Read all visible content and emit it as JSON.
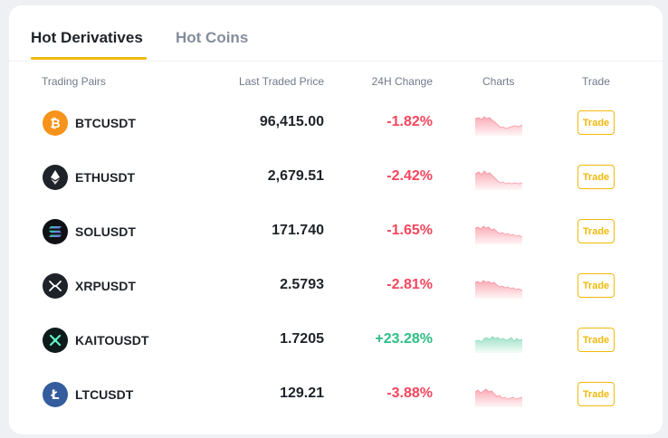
{
  "tabs": [
    {
      "label": "Hot Derivatives",
      "active": true
    },
    {
      "label": "Hot Coins",
      "active": false
    }
  ],
  "columns": {
    "pair": "Trading Pairs",
    "price": "Last Traded Price",
    "change": "24H Change",
    "charts": "Charts",
    "trade": "Trade"
  },
  "colors": {
    "accent": "#f0b90b",
    "negative": "#f6465d",
    "positive": "#2ebd85",
    "text": "#1e2329",
    "muted": "#707a8a"
  },
  "rows": [
    {
      "pair": "BTCUSDT",
      "price": "96,415.00",
      "change": "-1.82%",
      "trend": "down",
      "icon": "bitcoin-icon",
      "trade_label": "Trade"
    },
    {
      "pair": "ETHUSDT",
      "price": "2,679.51",
      "change": "-2.42%",
      "trend": "down",
      "icon": "ethereum-icon",
      "trade_label": "Trade"
    },
    {
      "pair": "SOLUSDT",
      "price": "171.740",
      "change": "-1.65%",
      "trend": "down",
      "icon": "solana-icon",
      "trade_label": "Trade"
    },
    {
      "pair": "XRPUSDT",
      "price": "2.5793",
      "change": "-2.81%",
      "trend": "down",
      "icon": "xrp-icon",
      "trade_label": "Trade"
    },
    {
      "pair": "KAITOUSDT",
      "price": "1.7205",
      "change": "+23.28%",
      "trend": "up",
      "icon": "kaito-icon",
      "trade_label": "Trade"
    },
    {
      "pair": "LTCUSDT",
      "price": "129.21",
      "change": "-3.88%",
      "trend": "down",
      "icon": "litecoin-icon",
      "trade_label": "Trade"
    }
  ]
}
